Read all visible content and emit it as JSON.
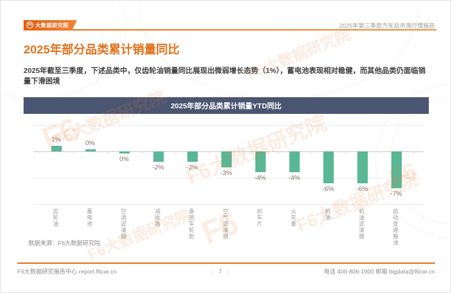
{
  "header": {
    "logo_badge": "大数据研究院",
    "logo_monogram": "F6",
    "report_label": "2025年第三季度汽车后市场行情报告"
  },
  "page_title": "2025年部分品类累计销量同比",
  "summary": "2025年截至三季度，下述品类中，仅齿轮油销量同比展现出微弱增长态势（1%），蓄电池表现相对稳健，而其他品类仍面临销量下滑困境",
  "chart_data": {
    "type": "bar",
    "title": "2025年部分品类累计销量YTD同比",
    "categories": [
      "齿轮油",
      "蓄电池",
      "空调滤清器",
      "减振器",
      "乘用车轮胎",
      "空气滤清器",
      "刹车片",
      "火花塞",
      "机油",
      "机油滤清器",
      "自动变速箱油"
    ],
    "values": [
      1,
      0,
      0,
      -2,
      -2,
      -3,
      -4,
      -4,
      -6,
      -6,
      -7
    ],
    "labels": [
      "1%",
      "0%",
      "0%",
      "-2%",
      "-2%",
      "-3%",
      "-4%",
      "-4%",
      "-6%",
      "-6%",
      "-7%"
    ],
    "direction": [
      1,
      1,
      -1,
      -1,
      -1,
      -1,
      -1,
      -1,
      -1,
      -1,
      -1
    ],
    "bar_color": "#5ab795",
    "ylim": [
      -10,
      5
    ],
    "gridlines": [
      5,
      0,
      -5,
      -10
    ],
    "grid": true,
    "legend": false,
    "source": "数据来源：F6大数据研究院"
  },
  "footer": {
    "left": "F6大数据研究报告中心 report.f6car.cn",
    "page_number": "7",
    "separator": "|",
    "right": "电话 400-806-1900  邮箱 bigdata@f6car.cn"
  },
  "branding": {
    "watermark_text": "F6大数据研究院",
    "watermark_monogram": "F6",
    "accent_orange": "#e2711c",
    "banner_blue": "#4a5571",
    "bar_teal": "#5ab795"
  }
}
